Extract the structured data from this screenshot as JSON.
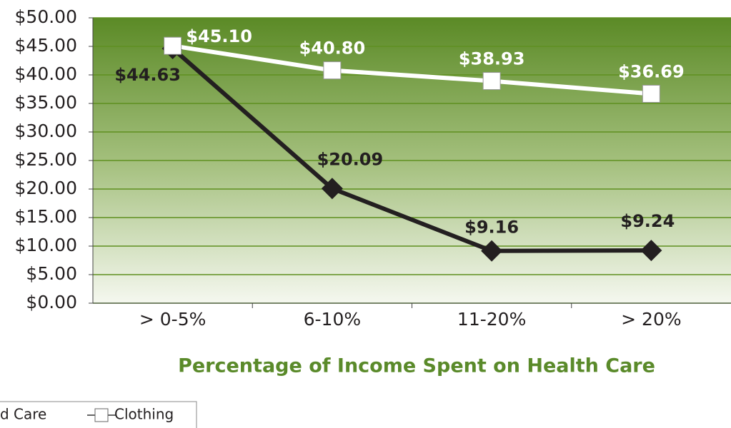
{
  "chart_data": {
    "type": "line",
    "x_label": "Percentage of Income Spent on Health Care",
    "categories": [
      "> 0-5%",
      "6-10%",
      "11-20%",
      "> 20%"
    ],
    "series": [
      {
        "name": "d Care",
        "color": "#231f20",
        "marker": "diamond",
        "values": [
          44.63,
          20.09,
          9.16,
          9.24
        ],
        "value_labels": [
          "$44.63",
          "$20.09",
          "$9.16",
          "$9.24"
        ]
      },
      {
        "name": "Clothing",
        "color": "#ffffff",
        "marker": "square",
        "values": [
          45.1,
          40.8,
          38.93,
          36.69
        ],
        "value_labels": [
          "$45.10",
          "$40.80",
          "$38.93",
          "$36.69"
        ]
      }
    ],
    "ylim": [
      0,
      50
    ],
    "yticks": [
      {
        "value": 0,
        "label": "$0.00"
      },
      {
        "value": 5,
        "label": "$5.00"
      },
      {
        "value": 10,
        "label": "$10.00"
      },
      {
        "value": 15,
        "label": "$15.00"
      },
      {
        "value": 20,
        "label": "$20.00"
      },
      {
        "value": 25,
        "label": "$25.00"
      },
      {
        "value": 30,
        "label": "$30.00"
      },
      {
        "value": 35,
        "label": "$35.00"
      },
      {
        "value": 40,
        "label": "$40.00"
      },
      {
        "value": 45,
        "label": "$45.00"
      },
      {
        "value": 50,
        "label": "$50.00"
      }
    ],
    "grid": true
  }
}
